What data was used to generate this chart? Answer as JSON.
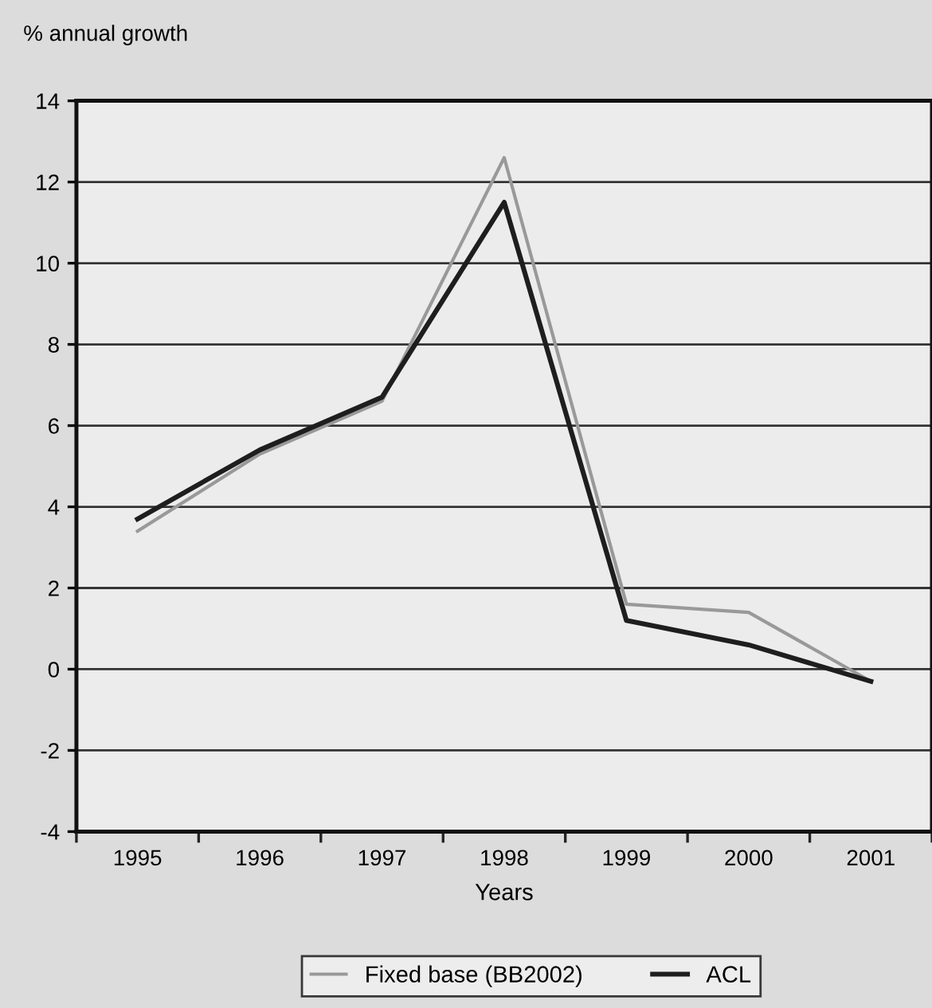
{
  "chart_data": {
    "type": "line",
    "ylabel": "% annual growth",
    "xlabel": "Years",
    "categories": [
      "1995",
      "1996",
      "1997",
      "1998",
      "1999",
      "2000",
      "2001"
    ],
    "series": [
      {
        "name": "Fixed base (BB2002)",
        "color": "#999999",
        "values": [
          3.4,
          5.3,
          6.6,
          12.6,
          1.6,
          1.4,
          -0.3
        ]
      },
      {
        "name": "ACL",
        "color": "#1e1e1e",
        "values": [
          3.7,
          5.4,
          6.7,
          11.5,
          1.2,
          0.6,
          -0.3
        ]
      }
    ],
    "ylim": [
      -4,
      14
    ],
    "yticks": [
      -4,
      -2,
      0,
      2,
      4,
      6,
      8,
      10,
      12,
      14
    ],
    "grid": "y",
    "legend": "bottom",
    "marker": "none",
    "line_style": "solid"
  }
}
